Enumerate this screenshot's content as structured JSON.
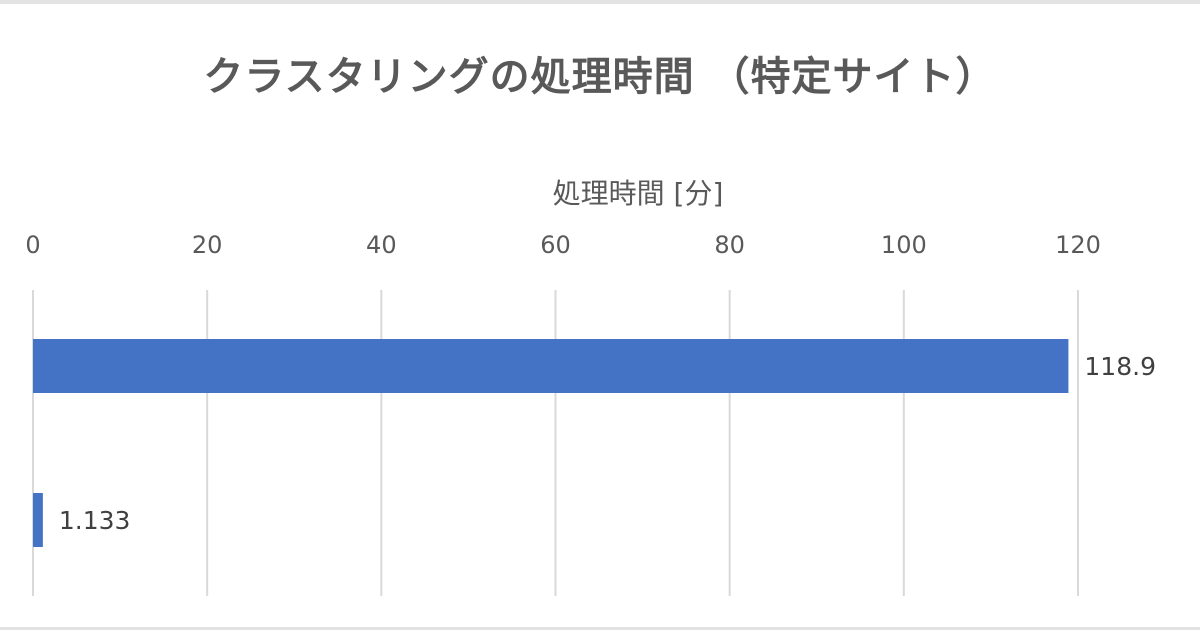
{
  "chart_data": {
    "type": "bar",
    "orientation": "horizontal",
    "title": "クラスタリングの処理時間 （特定サイト）",
    "xlabel": "処理時間 [分]",
    "ylabel": "",
    "categories": [
      "",
      ""
    ],
    "values": [
      118.9,
      1.133
    ],
    "data_labels": [
      "118.9",
      "1.133"
    ],
    "xlim": [
      0,
      120
    ],
    "x_ticks": [
      0,
      20,
      40,
      60,
      80,
      100,
      120
    ],
    "x_axis_position": "top",
    "grid": true,
    "legend": "none",
    "bar_color": "#4472c4",
    "grid_color": "#d9d9d9"
  }
}
